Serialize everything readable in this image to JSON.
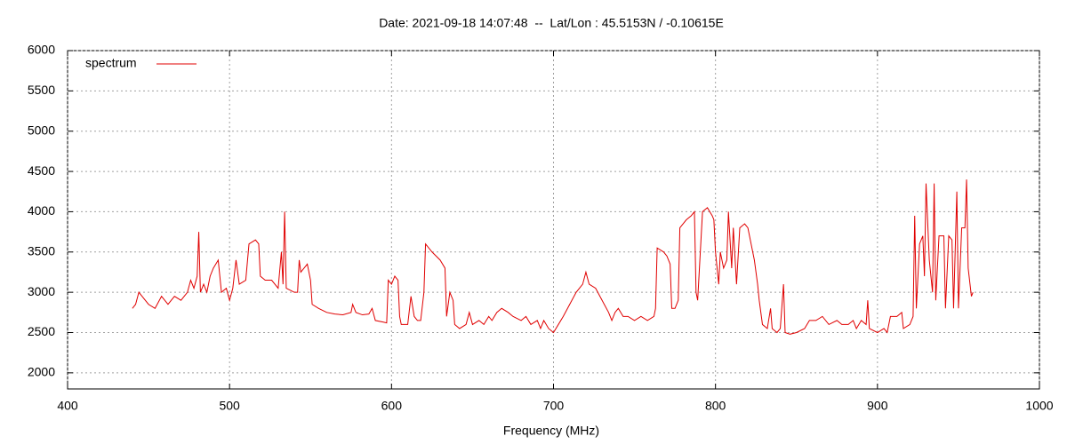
{
  "chart_data": {
    "type": "line",
    "title": "Date: 2021-09-18 14:07:48  --  Lat/Lon : 45.5153N / -0.10615E",
    "x_label": "Frequency (MHz)",
    "xlim": [
      400,
      1000
    ],
    "xticks": [
      400,
      500,
      600,
      700,
      800,
      900,
      1000
    ],
    "ylim": [
      1800,
      6000
    ],
    "yticks": [
      2000,
      2500,
      3000,
      3500,
      4000,
      4500,
      5000,
      5500,
      6000
    ],
    "grid": true,
    "legend": "top-left",
    "x": [
      440,
      442,
      444,
      446,
      450,
      454,
      458,
      462,
      466,
      470,
      474,
      476,
      478,
      480,
      481,
      482,
      484,
      486,
      488,
      490,
      493,
      495,
      498,
      500,
      502,
      504,
      506,
      510,
      512,
      516,
      518,
      519,
      522,
      526,
      530,
      532,
      533,
      534,
      535,
      540,
      542,
      543,
      544,
      548,
      550,
      551,
      555,
      560,
      565,
      570,
      575,
      576,
      578,
      582,
      586,
      588,
      590,
      595,
      597,
      598,
      600,
      602,
      604,
      605,
      606,
      610,
      612,
      614,
      616,
      618,
      620,
      621,
      625,
      630,
      633,
      634,
      636,
      638,
      639,
      642,
      646,
      648,
      650,
      654,
      657,
      660,
      662,
      665,
      668,
      672,
      675,
      680,
      683,
      686,
      690,
      692,
      694,
      697,
      700,
      703,
      706,
      710,
      714,
      718,
      720,
      722,
      726,
      730,
      734,
      736,
      738,
      740,
      743,
      746,
      750,
      754,
      758,
      762,
      763,
      764,
      768,
      770,
      772,
      773,
      775,
      777,
      778,
      782,
      785,
      787,
      788,
      789,
      792,
      795,
      798,
      799,
      800,
      802,
      803,
      805,
      807,
      808,
      810,
      811,
      813,
      815,
      818,
      820,
      822,
      824,
      826,
      827,
      829,
      832,
      834,
      835,
      838,
      840,
      842,
      843,
      846,
      850,
      855,
      858,
      862,
      866,
      870,
      875,
      878,
      882,
      885,
      887,
      890,
      893,
      894,
      895,
      900,
      904,
      906,
      908,
      912,
      915,
      916,
      920,
      922,
      923,
      924,
      926,
      928,
      929,
      930,
      932,
      934,
      935,
      936,
      938,
      941,
      942,
      944,
      946,
      947,
      949,
      950,
      952,
      954,
      955,
      956,
      958,
      959
    ],
    "series": [
      {
        "name": "spectrum",
        "color": "#e00000",
        "values": [
          2800,
          2850,
          3000,
          2950,
          2850,
          2800,
          2950,
          2850,
          2950,
          2900,
          3000,
          3150,
          3050,
          3200,
          3750,
          3000,
          3100,
          3000,
          3200,
          3300,
          3400,
          3000,
          3050,
          2900,
          3050,
          3400,
          3100,
          3150,
          3600,
          3650,
          3600,
          3200,
          3150,
          3150,
          3050,
          3500,
          3100,
          4000,
          3050,
          3000,
          3000,
          3400,
          3250,
          3350,
          3150,
          2850,
          2800,
          2750,
          2730,
          2720,
          2750,
          2850,
          2750,
          2720,
          2730,
          2800,
          2650,
          2630,
          2620,
          3150,
          3100,
          3200,
          3150,
          2700,
          2600,
          2600,
          2950,
          2700,
          2650,
          2650,
          3000,
          3600,
          3500,
          3400,
          3300,
          2700,
          3000,
          2900,
          2600,
          2550,
          2600,
          2750,
          2600,
          2650,
          2600,
          2700,
          2650,
          2750,
          2800,
          2750,
          2700,
          2650,
          2700,
          2600,
          2650,
          2550,
          2650,
          2550,
          2500,
          2600,
          2700,
          2850,
          3000,
          3100,
          3250,
          3100,
          3050,
          2900,
          2750,
          2650,
          2750,
          2800,
          2700,
          2700,
          2650,
          2700,
          2650,
          2700,
          2800,
          3550,
          3500,
          3450,
          3350,
          2800,
          2800,
          2900,
          3800,
          3900,
          3950,
          4000,
          3000,
          2900,
          4000,
          4050,
          3950,
          3900,
          3500,
          3100,
          3500,
          3300,
          3400,
          4000,
          3300,
          3800,
          3100,
          3800,
          3850,
          3800,
          3600,
          3400,
          3100,
          2900,
          2600,
          2550,
          2800,
          2550,
          2500,
          2550,
          3100,
          2500,
          2480,
          2500,
          2550,
          2650,
          2650,
          2700,
          2600,
          2650,
          2600,
          2600,
          2650,
          2550,
          2650,
          2600,
          2900,
          2550,
          2500,
          2550,
          2500,
          2700,
          2700,
          2750,
          2550,
          2600,
          2700,
          3950,
          2800,
          3600,
          3700,
          3200,
          4350,
          3400,
          3000,
          4350,
          2900,
          3700,
          3700,
          2800,
          3700,
          3650,
          2800,
          4250,
          2800,
          3800,
          3800,
          4400,
          3300,
          2950,
          3000
        ]
      }
    ]
  }
}
